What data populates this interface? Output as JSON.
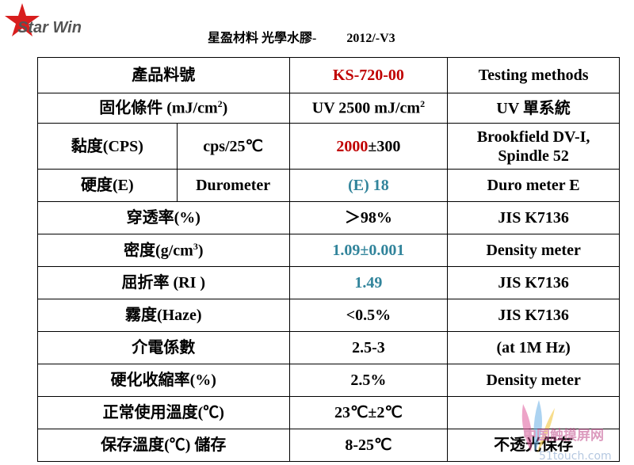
{
  "header": {
    "logo": "Star Win",
    "title": "星盈材料 光學水膠-",
    "version": "2012/-V3"
  },
  "table": {
    "rows": [
      [
        "產品料號",
        "KS-720-00",
        "Testing methods"
      ],
      [
        [
          "固化條件 (mJ/cm",
          "2",
          ")"
        ],
        [
          "UV 2500 mJ/cm",
          "2"
        ],
        "UV 單系統"
      ],
      [
        "黏度(CPS)",
        "cps/25℃",
        [
          "2000",
          "±300"
        ],
        [
          "Brookfield DV-I,",
          "Spindle 52"
        ]
      ],
      [
        "硬度(E)",
        "Durometer",
        "(E) 18",
        "Duro meter E"
      ],
      [
        "穿透率(%)",
        "＞98%",
        "JIS K7136"
      ],
      [
        [
          "密度(g/cm",
          "3",
          ")"
        ],
        "1.09±0.001",
        "Density meter"
      ],
      [
        "屈折率 (RI )",
        "1.49",
        "JIS K7136"
      ],
      [
        "霧度(Haze)",
        "<0.5%",
        "JIS K7136"
      ],
      [
        "介電係數",
        "2.5-3",
        "(at  1M Hz)"
      ],
      [
        "硬化收縮率(%)",
        "2.5%",
        "Density meter"
      ],
      [
        "正常使用溫度(℃)",
        "23℃±2℃"
      ],
      [
        "保存溫度(℃) 儲存",
        "8-25℃",
        "不透光保存"
      ]
    ]
  },
  "watermark": {
    "site": "中国触摸屏网",
    "url": "51touch.com"
  }
}
